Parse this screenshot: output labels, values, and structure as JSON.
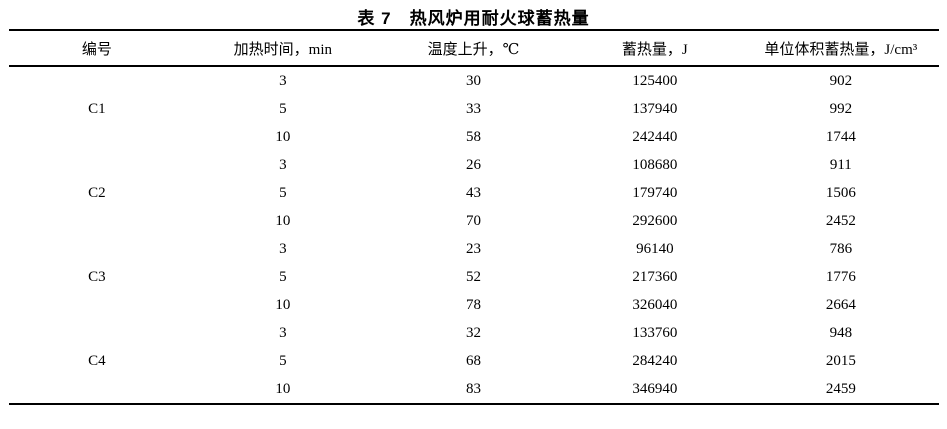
{
  "title": "表 7　热风炉用耐火球蓄热量",
  "table": {
    "headers": [
      "编号",
      "加热时间，min",
      "温度上升，℃",
      "蓄热量，J",
      "单位体积蓄热量，J/cm³"
    ],
    "groups": [
      {
        "id": "C1",
        "rows": [
          [
            "3",
            "30",
            "125400",
            "902"
          ],
          [
            "5",
            "33",
            "137940",
            "992"
          ],
          [
            "10",
            "58",
            "242440",
            "1744"
          ]
        ]
      },
      {
        "id": "C2",
        "rows": [
          [
            "3",
            "26",
            "108680",
            "911"
          ],
          [
            "5",
            "43",
            "179740",
            "1506"
          ],
          [
            "10",
            "70",
            "292600",
            "2452"
          ]
        ]
      },
      {
        "id": "C3",
        "rows": [
          [
            "3",
            "23",
            "96140",
            "786"
          ],
          [
            "5",
            "52",
            "217360",
            "1776"
          ],
          [
            "10",
            "78",
            "326040",
            "2664"
          ]
        ]
      },
      {
        "id": "C4",
        "rows": [
          [
            "3",
            "32",
            "133760",
            "948"
          ],
          [
            "5",
            "68",
            "284240",
            "2015"
          ],
          [
            "10",
            "83",
            "346940",
            "2459"
          ]
        ]
      }
    ]
  }
}
